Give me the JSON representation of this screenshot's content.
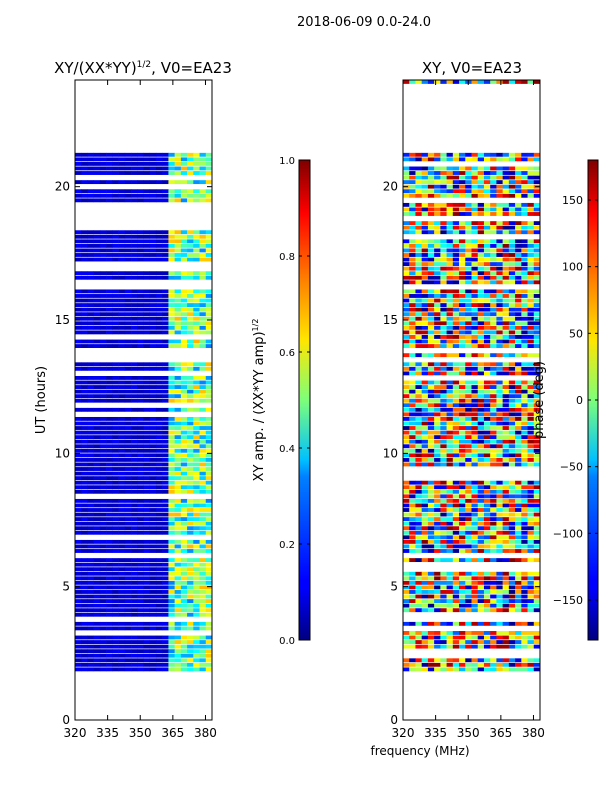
{
  "figure": {
    "suptitle": "2018-06-09 0.0-24.0",
    "xlabel": "frequency (MHz)"
  },
  "chart_data": [
    {
      "type": "heatmap",
      "title_prefix": "XY/(XX*YY)",
      "title_exp": "1/2",
      "title_suffix": ", V0=EA23",
      "ylabel": "UT (hours)",
      "xlim": [
        320,
        383
      ],
      "ylim": [
        0,
        24
      ],
      "xticks": [
        320,
        335,
        350,
        365,
        380
      ],
      "yticks": [
        0,
        5,
        10,
        15,
        20
      ],
      "data_rows_hours": [
        1.8,
        24
      ],
      "gaps_hours": [
        [
          21.1,
          24.0
        ],
        [
          16.1,
          16.6
        ],
        [
          11.4,
          11.6
        ],
        [
          7.8,
          8.5
        ],
        [
          22.0,
          23.9
        ]
      ],
      "colorbar": {
        "label_prefix": "XY amp. / (XX*YY amp)",
        "label_exp": "1/2",
        "range": [
          0.0,
          1.0
        ],
        "ticks": [
          "0.0",
          "0.2",
          "0.4",
          "0.6",
          "0.8",
          "1.0"
        ],
        "tick_values": [
          0.0,
          0.2,
          0.4,
          0.6,
          0.8,
          1.0
        ]
      }
    },
    {
      "type": "heatmap",
      "title": "XY, V0=EA23",
      "ylabel": "",
      "xlim": [
        320,
        383
      ],
      "ylim": [
        0,
        24
      ],
      "xticks": [
        320,
        335,
        350,
        365,
        380
      ],
      "yticks": [
        0,
        5,
        10,
        15,
        20
      ],
      "data_rows_hours": [
        1.8,
        24
      ],
      "colorbar": {
        "label": "phase (deg)",
        "range": [
          -180,
          180
        ],
        "ticks": [
          "−150",
          "−100",
          "−50",
          "0",
          "50",
          "100",
          "150"
        ],
        "tick_values": [
          -150,
          -100,
          -50,
          0,
          50,
          100,
          150
        ]
      }
    }
  ]
}
